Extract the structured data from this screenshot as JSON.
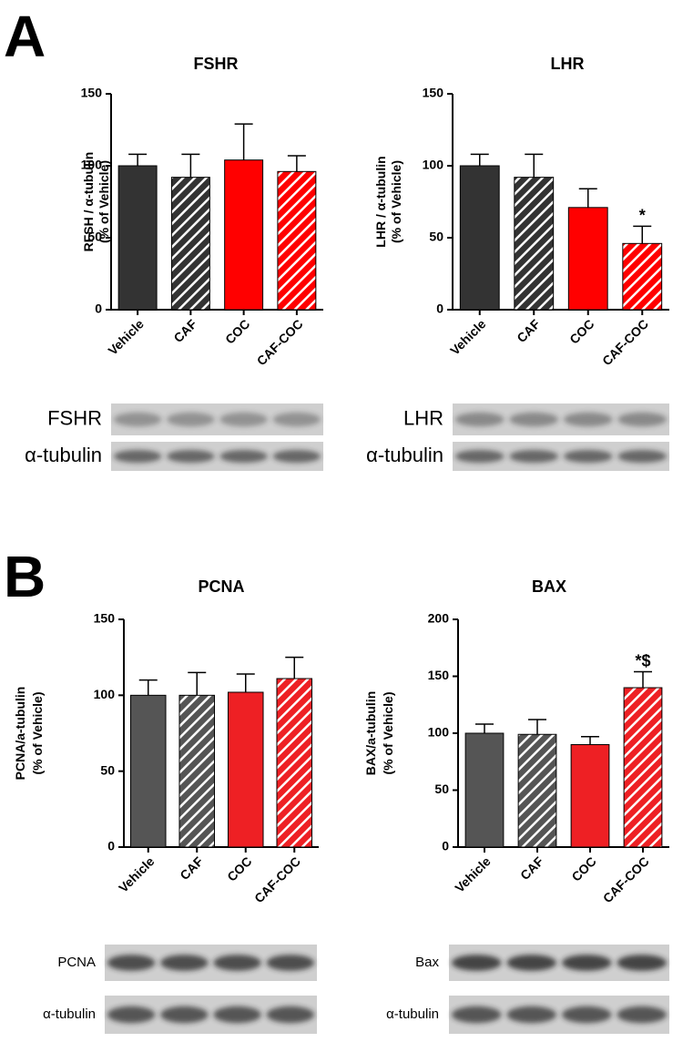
{
  "panels": [
    {
      "letter": "A"
    },
    {
      "letter": "B"
    }
  ],
  "chart_data": [
    {
      "type": "bar",
      "title": "FSHR",
      "ylabel": [
        "RFSH / α-tubulin",
        "(% of Vehicle)"
      ],
      "categories": [
        "Vehicle",
        "CAF",
        "COC",
        "CAF-COC"
      ],
      "values": [
        100,
        92,
        104,
        96
      ],
      "errors": [
        8,
        16,
        25,
        11
      ],
      "annotation_labels": [
        null,
        null,
        null,
        null
      ],
      "colors": [
        "#333333",
        "#333333",
        "#ff0000",
        "#ff0000"
      ],
      "hatched": [
        false,
        true,
        false,
        true
      ],
      "ylim": [
        0,
        150
      ],
      "yticks": [
        0,
        50,
        100,
        150
      ]
    },
    {
      "type": "bar",
      "title": "LHR",
      "ylabel": [
        "LHR / α-tubulin",
        "(% of Vehicle)"
      ],
      "categories": [
        "Vehicle",
        "CAF",
        "COC",
        "CAF-COC"
      ],
      "values": [
        100,
        92,
        71,
        46
      ],
      "errors": [
        8,
        16,
        13,
        12
      ],
      "annotation_labels": [
        null,
        null,
        null,
        "*"
      ],
      "colors": [
        "#333333",
        "#333333",
        "#ff0000",
        "#ff0000"
      ],
      "hatched": [
        false,
        true,
        false,
        true
      ],
      "ylim": [
        0,
        150
      ],
      "yticks": [
        0,
        50,
        100,
        150
      ]
    },
    {
      "type": "bar",
      "title": "PCNA",
      "ylabel": [
        "PCNA/a-tubulin",
        "(% of Vehicle)"
      ],
      "categories": [
        "Vehicle",
        "CAF",
        "COC",
        "CAF-COC"
      ],
      "values": [
        100,
        100,
        102,
        111
      ],
      "errors": [
        10,
        15,
        12,
        14
      ],
      "annotation_labels": [
        null,
        null,
        null,
        null
      ],
      "colors": [
        "#555555",
        "#555555",
        "#ee2024",
        "#ee2024"
      ],
      "hatched": [
        false,
        true,
        false,
        true
      ],
      "ylim": [
        0,
        150
      ],
      "yticks": [
        0,
        50,
        100,
        150
      ]
    },
    {
      "type": "bar",
      "title": "BAX",
      "ylabel": [
        "BAX/a-tubulin",
        "(% of Vehicle)"
      ],
      "categories": [
        "Vehicle",
        "CAF",
        "COC",
        "CAF-COC"
      ],
      "values": [
        100,
        99,
        90,
        140
      ],
      "errors": [
        8,
        13,
        7,
        14
      ],
      "annotation_labels": [
        null,
        null,
        null,
        "*$"
      ],
      "colors": [
        "#555555",
        "#555555",
        "#ee2024",
        "#ee2024"
      ],
      "hatched": [
        false,
        true,
        false,
        true
      ],
      "ylim": [
        0,
        200
      ],
      "yticks": [
        0,
        50,
        100,
        150,
        200
      ]
    }
  ],
  "blots": [
    {
      "rows": [
        "FSHR",
        "α-tubulin"
      ]
    },
    {
      "rows": [
        "LHR",
        "α-tubulin"
      ]
    },
    {
      "rows": [
        "PCNA",
        "α-tubulin"
      ]
    },
    {
      "rows": [
        "Bax",
        "α-tubulin"
      ]
    }
  ]
}
